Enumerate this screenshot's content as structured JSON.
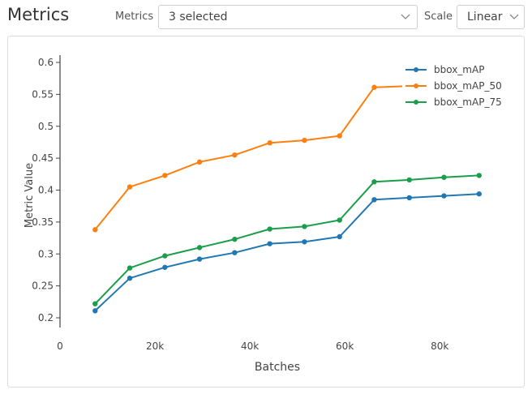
{
  "header": {
    "title": "Metrics",
    "metrics_label": "Metrics",
    "metrics_value": "3 selected",
    "scale_label": "Scale",
    "scale_value": "Linear"
  },
  "chart_data": {
    "type": "line",
    "xlabel": "Batches",
    "ylabel": "Metric Value",
    "xlim": [
      0,
      95000
    ],
    "ylim": [
      0.18,
      0.6
    ],
    "xticks": [
      0,
      20000,
      40000,
      60000,
      80000
    ],
    "xtick_labels": [
      "0",
      "20k",
      "40k",
      "60k",
      "80k"
    ],
    "yticks": [
      0.2,
      0.25,
      0.3,
      0.35,
      0.4,
      0.45,
      0.5,
      0.55,
      0.6
    ],
    "ytick_labels": [
      "0.2",
      "0.25",
      "0.3",
      "0.35",
      "0.4",
      "0.45",
      "0.5",
      "0.55",
      "0.6"
    ],
    "grid": false,
    "legend_position": "top-right",
    "x": [
      7400,
      14700,
      22100,
      29400,
      36800,
      44200,
      51500,
      58900,
      66200,
      73600,
      80900,
      88300
    ],
    "series": [
      {
        "name": "bbox_mAP",
        "color": "#1f77b4",
        "values": [
          0.211,
          0.262,
          0.279,
          0.292,
          0.302,
          0.316,
          0.319,
          0.327,
          0.385,
          0.388,
          0.391,
          0.394
        ]
      },
      {
        "name": "bbox_mAP_50",
        "color": "#ff7f0e",
        "values": [
          0.338,
          0.405,
          0.423,
          0.444,
          0.455,
          0.474,
          0.478,
          0.485,
          0.561,
          0.563,
          0.565,
          0.567
        ]
      },
      {
        "name": "bbox_mAP_75",
        "color": "#1a9e4a",
        "values": [
          0.222,
          0.278,
          0.297,
          0.31,
          0.323,
          0.339,
          0.343,
          0.353,
          0.413,
          0.416,
          0.42,
          0.423
        ]
      }
    ]
  }
}
